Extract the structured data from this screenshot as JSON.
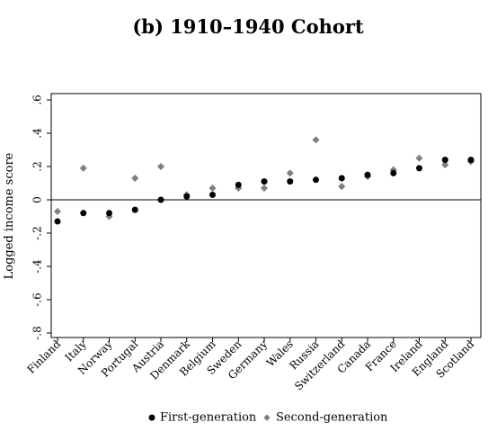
{
  "chart_data": {
    "type": "scatter",
    "title": "(b) 1910–1940 Cohort",
    "ylabel": "Logged income score",
    "xlabel": "",
    "categories": [
      "Finland",
      "Italy",
      "Norway",
      "Portugal",
      "Austria",
      "Denmark",
      "Belgium",
      "Sweden",
      "Germany",
      "Wales",
      "Russia",
      "Switzerland",
      "Canada",
      "France",
      "Ireland",
      "England",
      "Scotland"
    ],
    "ylim": [
      -0.8,
      0.6
    ],
    "yticks": [
      {
        "value": 0.6,
        "label": ".6"
      },
      {
        "value": 0.4,
        "label": ".4"
      },
      {
        "value": 0.2,
        "label": ".2"
      },
      {
        "value": 0,
        "label": "0"
      },
      {
        "value": -0.2,
        "label": "-.2"
      },
      {
        "value": -0.4,
        "label": "-.4"
      },
      {
        "value": -0.6,
        "label": "-.6"
      },
      {
        "value": -0.8,
        "label": "-.8"
      }
    ],
    "zero_line": true,
    "grid": false,
    "legend_position": "bottom",
    "series": [
      {
        "name": "First-generation",
        "marker": "circle",
        "color": "#000000",
        "values": [
          -0.13,
          -0.08,
          -0.08,
          -0.06,
          0.0,
          0.02,
          0.03,
          0.09,
          0.11,
          0.11,
          0.12,
          0.13,
          0.15,
          0.16,
          0.19,
          0.24,
          0.24
        ]
      },
      {
        "name": "Second-generation",
        "marker": "diamond",
        "color": "#7f7f7f",
        "values": [
          -0.07,
          0.19,
          -0.1,
          0.13,
          0.2,
          0.03,
          0.07,
          0.07,
          0.07,
          0.16,
          0.36,
          0.08,
          0.14,
          0.18,
          0.25,
          0.21,
          0.23
        ]
      }
    ],
    "legend": [
      {
        "label": "First-generation",
        "marker": "circle",
        "color": "#000000"
      },
      {
        "label": "Second-generation",
        "marker": "diamond",
        "color": "#7f7f7f"
      }
    ]
  }
}
